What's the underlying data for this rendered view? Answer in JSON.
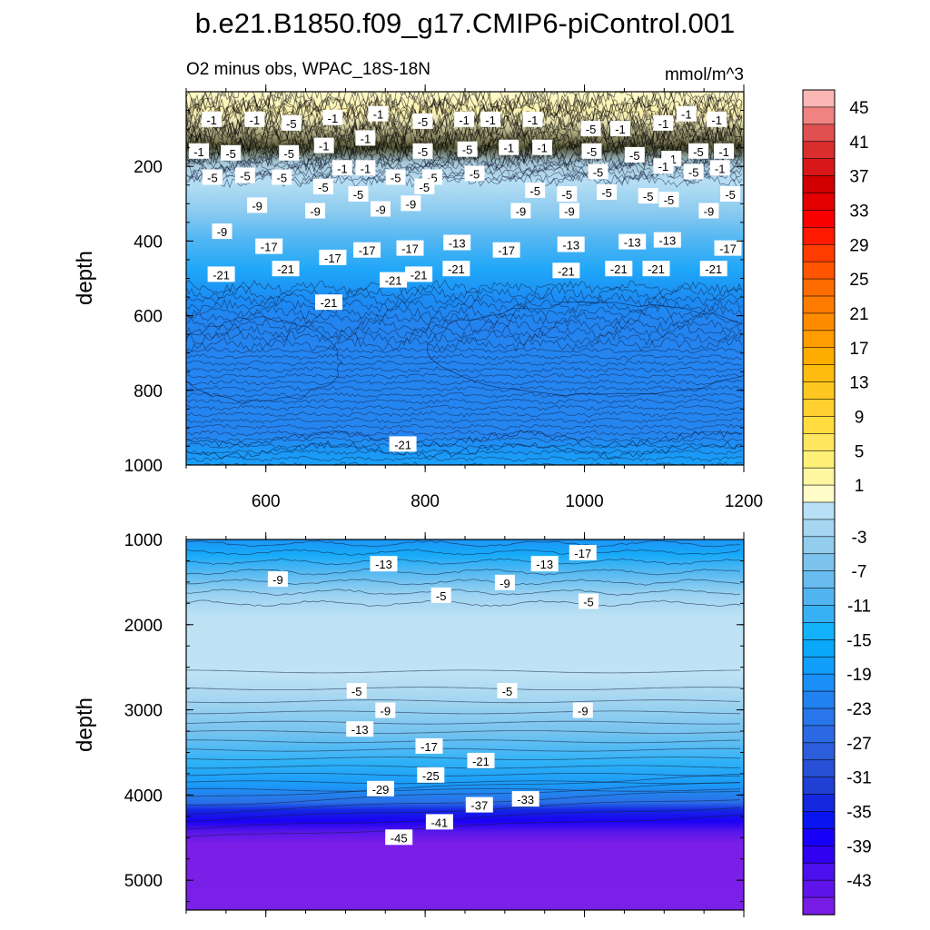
{
  "chart_data": {
    "type": "heatmap",
    "title": "b.e21.B1850.f09_g17.CMIP6-piControl.001",
    "subtitle_left": "O2 minus obs, WPAC_18S-18N",
    "units": "mmol/m^3",
    "panels": [
      {
        "name": "upper",
        "ylabel": "depth",
        "ylim": [
          0,
          1000
        ],
        "xlim": [
          500,
          1200
        ],
        "y_ticks": [
          200,
          400,
          600,
          800,
          1000
        ],
        "x_ticks": [
          600,
          800,
          1000,
          1200
        ],
        "contour_labels": [
          {
            "x": 532,
            "y": 75,
            "text": "-1"
          },
          {
            "x": 586,
            "y": 75,
            "text": "-1"
          },
          {
            "x": 632,
            "y": 85,
            "text": "-5"
          },
          {
            "x": 684,
            "y": 70,
            "text": "-1"
          },
          {
            "x": 741,
            "y": 60,
            "text": "-1"
          },
          {
            "x": 797,
            "y": 80,
            "text": "-5"
          },
          {
            "x": 849,
            "y": 75,
            "text": "-1"
          },
          {
            "x": 882,
            "y": 75,
            "text": "-1"
          },
          {
            "x": 935,
            "y": 75,
            "text": "-1"
          },
          {
            "x": 1008,
            "y": 100,
            "text": "-5"
          },
          {
            "x": 1045,
            "y": 100,
            "text": "-1"
          },
          {
            "x": 1099,
            "y": 85,
            "text": "-1"
          },
          {
            "x": 1128,
            "y": 60,
            "text": "-1"
          },
          {
            "x": 1166,
            "y": 75,
            "text": "-1"
          },
          {
            "x": 516,
            "y": 160,
            "text": "-1"
          },
          {
            "x": 556,
            "y": 165,
            "text": "-5"
          },
          {
            "x": 629,
            "y": 165,
            "text": "-5"
          },
          {
            "x": 673,
            "y": 145,
            "text": "-1"
          },
          {
            "x": 725,
            "y": 125,
            "text": "-1"
          },
          {
            "x": 797,
            "y": 160,
            "text": "-5"
          },
          {
            "x": 853,
            "y": 155,
            "text": "-5"
          },
          {
            "x": 905,
            "y": 150,
            "text": "-1"
          },
          {
            "x": 947,
            "y": 150,
            "text": "-1"
          },
          {
            "x": 1009,
            "y": 160,
            "text": "-5"
          },
          {
            "x": 1063,
            "y": 170,
            "text": "-5"
          },
          {
            "x": 1109,
            "y": 180,
            "text": "-1"
          },
          {
            "x": 1143,
            "y": 160,
            "text": "-5"
          },
          {
            "x": 1175,
            "y": 160,
            "text": "-1"
          },
          {
            "x": 533,
            "y": 230,
            "text": "-5"
          },
          {
            "x": 574,
            "y": 225,
            "text": "-5"
          },
          {
            "x": 620,
            "y": 230,
            "text": "-5"
          },
          {
            "x": 672,
            "y": 255,
            "text": "-5"
          },
          {
            "x": 696,
            "y": 205,
            "text": "-1"
          },
          {
            "x": 725,
            "y": 205,
            "text": "-1"
          },
          {
            "x": 763,
            "y": 230,
            "text": "-5"
          },
          {
            "x": 809,
            "y": 230,
            "text": "-5"
          },
          {
            "x": 862,
            "y": 220,
            "text": "-5"
          },
          {
            "x": 1017,
            "y": 215,
            "text": "-5"
          },
          {
            "x": 1099,
            "y": 200,
            "text": "-1"
          },
          {
            "x": 1137,
            "y": 215,
            "text": "-5"
          },
          {
            "x": 1170,
            "y": 205,
            "text": "-1"
          },
          {
            "x": 589,
            "y": 305,
            "text": "-9"
          },
          {
            "x": 662,
            "y": 320,
            "text": "-9"
          },
          {
            "x": 716,
            "y": 275,
            "text": "-5"
          },
          {
            "x": 799,
            "y": 255,
            "text": "-5"
          },
          {
            "x": 938,
            "y": 265,
            "text": "-5"
          },
          {
            "x": 978,
            "y": 275,
            "text": "-5"
          },
          {
            "x": 1028,
            "y": 270,
            "text": "-5"
          },
          {
            "x": 1080,
            "y": 280,
            "text": "-5"
          },
          {
            "x": 1183,
            "y": 275,
            "text": "-5"
          },
          {
            "x": 744,
            "y": 315,
            "text": "-9"
          },
          {
            "x": 782,
            "y": 300,
            "text": "-9"
          },
          {
            "x": 920,
            "y": 320,
            "text": "-9"
          },
          {
            "x": 981,
            "y": 320,
            "text": "-9"
          },
          {
            "x": 1106,
            "y": 290,
            "text": "-5"
          },
          {
            "x": 1156,
            "y": 320,
            "text": "-9"
          },
          {
            "x": 545,
            "y": 375,
            "text": "-9"
          },
          {
            "x": 604,
            "y": 415,
            "text": "-17"
          },
          {
            "x": 684,
            "y": 445,
            "text": "-17"
          },
          {
            "x": 727,
            "y": 425,
            "text": "-17"
          },
          {
            "x": 781,
            "y": 420,
            "text": "-17"
          },
          {
            "x": 840,
            "y": 405,
            "text": "-13"
          },
          {
            "x": 902,
            "y": 425,
            "text": "-17"
          },
          {
            "x": 983,
            "y": 410,
            "text": "-13"
          },
          {
            "x": 1060,
            "y": 403,
            "text": "-13"
          },
          {
            "x": 1104,
            "y": 398,
            "text": "-13"
          },
          {
            "x": 1180,
            "y": 420,
            "text": "-17"
          },
          {
            "x": 544,
            "y": 490,
            "text": "-21"
          },
          {
            "x": 625,
            "y": 475,
            "text": "-21"
          },
          {
            "x": 760,
            "y": 505,
            "text": "-21"
          },
          {
            "x": 792,
            "y": 490,
            "text": "-21"
          },
          {
            "x": 839,
            "y": 475,
            "text": "-21"
          },
          {
            "x": 977,
            "y": 480,
            "text": "-21"
          },
          {
            "x": 1043,
            "y": 475,
            "text": "-21"
          },
          {
            "x": 1090,
            "y": 475,
            "text": "-21"
          },
          {
            "x": 1162,
            "y": 475,
            "text": "-21"
          },
          {
            "x": 679,
            "y": 565,
            "text": "-21"
          },
          {
            "x": 772,
            "y": 945,
            "text": "-21"
          }
        ]
      },
      {
        "name": "lower",
        "ylabel": "depth",
        "ylim": [
          1000,
          5350
        ],
        "xlim": [
          500,
          1200
        ],
        "y_ticks": [
          1000,
          2000,
          3000,
          4000,
          5000
        ],
        "contour_labels": [
          {
            "x": 615,
            "y": 1470,
            "text": "-9"
          },
          {
            "x": 748,
            "y": 1290,
            "text": "-13"
          },
          {
            "x": 820,
            "y": 1660,
            "text": "-5"
          },
          {
            "x": 900,
            "y": 1510,
            "text": "-9"
          },
          {
            "x": 950,
            "y": 1290,
            "text": "-13"
          },
          {
            "x": 998,
            "y": 1160,
            "text": "-17"
          },
          {
            "x": 1005,
            "y": 1730,
            "text": "-5"
          },
          {
            "x": 714,
            "y": 2780,
            "text": "-5"
          },
          {
            "x": 750,
            "y": 3010,
            "text": "-9"
          },
          {
            "x": 718,
            "y": 3230,
            "text": "-13"
          },
          {
            "x": 805,
            "y": 3430,
            "text": "-17"
          },
          {
            "x": 870,
            "y": 3600,
            "text": "-21"
          },
          {
            "x": 807,
            "y": 3770,
            "text": "-25"
          },
          {
            "x": 744,
            "y": 3930,
            "text": "-29"
          },
          {
            "x": 903,
            "y": 2780,
            "text": "-5"
          },
          {
            "x": 998,
            "y": 3010,
            "text": "-9"
          },
          {
            "x": 868,
            "y": 4120,
            "text": "-37"
          },
          {
            "x": 926,
            "y": 4050,
            "text": "-33"
          },
          {
            "x": 818,
            "y": 4320,
            "text": "-41"
          },
          {
            "x": 767,
            "y": 4500,
            "text": "-45"
          }
        ]
      }
    ],
    "colorbar": {
      "labels": [
        "45",
        "41",
        "37",
        "33",
        "29",
        "25",
        "21",
        "17",
        "13",
        "9",
        "5",
        "1",
        "-3",
        "-7",
        "-11",
        "-15",
        "-19",
        "-23",
        "-27",
        "-31",
        "-35",
        "-39",
        "-43"
      ],
      "colors": [
        "#fcb6b6",
        "#f08282",
        "#e05050",
        "#da2e2e",
        "#d81818",
        "#d00000",
        "#e40000",
        "#f80000",
        "#ff1a00",
        "#ff3c00",
        "#ff5400",
        "#ff6c00",
        "#ff7c00",
        "#ff8c00",
        "#ff9c00",
        "#ffac00",
        "#ffbc10",
        "#ffc820",
        "#ffd030",
        "#ffdc40",
        "#ffe660",
        "#fff078",
        "#fff6a0",
        "#fffcc8",
        "#b8dff5",
        "#a6d6f1",
        "#92cdee",
        "#7cc4ee",
        "#68bcf0",
        "#52b5f2",
        "#38b0f6",
        "#14b2fa",
        "#0aa8fa",
        "#109efa",
        "#1a90f6",
        "#2282f0",
        "#2876ea",
        "#2c6ae4",
        "#2c5edc",
        "#2850d6",
        "#2040d4",
        "#1428e0",
        "#0a14f0",
        "#1800f8",
        "#3000f0",
        "#4c10ec",
        "#5e14ea",
        "#781ce8"
      ]
    }
  }
}
